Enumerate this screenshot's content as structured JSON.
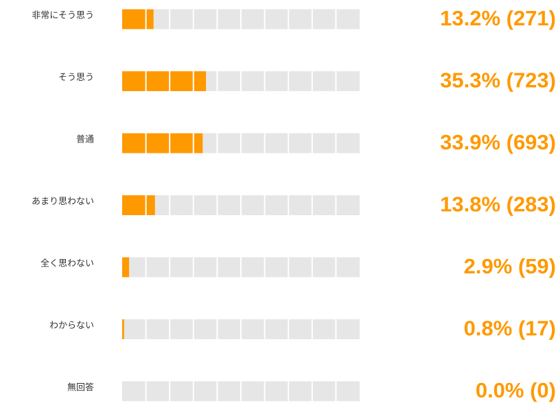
{
  "chart_data": {
    "type": "bar",
    "orientation": "horizontal",
    "categories": [
      "非常にそう思う",
      "そう思う",
      "普通",
      "あまり思わない",
      "全く思わない",
      "わからない",
      "無回答"
    ],
    "values": [
      13.2,
      35.3,
      33.9,
      13.8,
      2.9,
      0.8,
      0.0
    ],
    "value_labels": [
      "13.2% (271)",
      "35.3% (723)",
      "33.9% (693)",
      "13.8% (283)",
      "2.9% (59)",
      "0.8% (17)",
      "0.0% (0)"
    ],
    "color": "#ff9900",
    "xlim": [
      0,
      100
    ]
  }
}
